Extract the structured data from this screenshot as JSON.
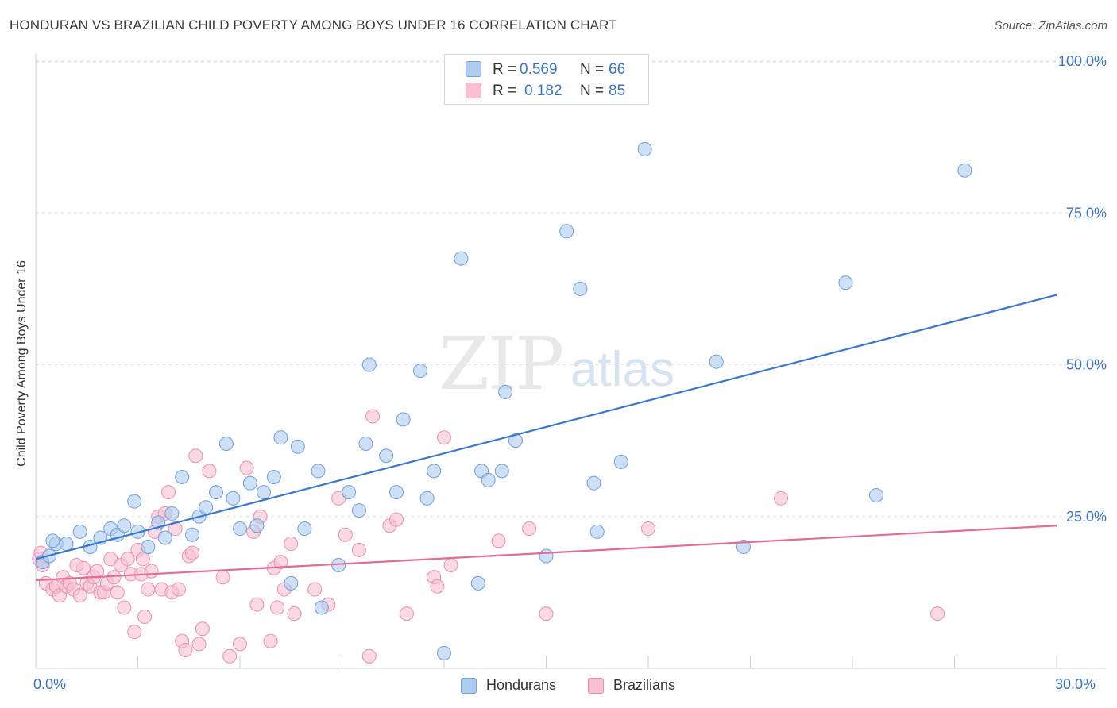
{
  "title": "HONDURAN VS BRAZILIAN CHILD POVERTY AMONG BOYS UNDER 16 CORRELATION CHART",
  "source": "Source: ZipAtlas.com",
  "watermark": {
    "zip": "ZIP",
    "atlas": "atlas"
  },
  "legend_top": [
    {
      "r_label": "R =",
      "r_value": "0.569",
      "n_label": "N =",
      "n_value": "66"
    },
    {
      "r_label": "R =",
      "r_value": "0.182",
      "n_label": "N =",
      "n_value": "85"
    }
  ],
  "legend_bottom": [
    {
      "label": "Hondurans"
    },
    {
      "label": "Brazilians"
    }
  ],
  "colors": {
    "hondurans_fill": "#aecbf0",
    "hondurans_stroke": "#6f9fdc",
    "hondurans_line": "#3a78d0",
    "brazilians_fill": "#f7bfd1",
    "brazilians_stroke": "#ea8fae",
    "brazilians_line": "#e26b97",
    "tick_text": "#3b74c6",
    "grid": "#e2e2e2"
  },
  "chart_data": {
    "type": "scatter",
    "title": "HONDURAN VS BRAZILIAN CHILD POVERTY AMONG BOYS UNDER 16 CORRELATION CHART",
    "xlabel": "",
    "ylabel": "Child Poverty Among Boys Under 16",
    "xlim": [
      0,
      30
    ],
    "ylim": [
      0,
      105
    ],
    "x_ticks": [
      {
        "v": 0,
        "label": "0.0%"
      },
      {
        "v": 30,
        "label": "30.0%"
      }
    ],
    "y_ticks": [
      {
        "v": 25,
        "label": "25.0%"
      },
      {
        "v": 50,
        "label": "50.0%"
      },
      {
        "v": 75,
        "label": "75.0%"
      },
      {
        "v": 100,
        "label": "100.0%"
      }
    ],
    "grid": true,
    "series": [
      {
        "name": "Hondurans",
        "trend": {
          "x": [
            0,
            30
          ],
          "y": [
            18.0,
            61.5
          ]
        },
        "points": [
          [
            0.2,
            17.5
          ],
          [
            0.4,
            18.5
          ],
          [
            0.6,
            20.5
          ],
          [
            0.9,
            20.5
          ],
          [
            1.3,
            22.5
          ],
          [
            1.6,
            20
          ],
          [
            1.9,
            21.5
          ],
          [
            2.2,
            23
          ],
          [
            2.4,
            22
          ],
          [
            2.6,
            23.5
          ],
          [
            2.9,
            27.5
          ],
          [
            3.0,
            22.5
          ],
          [
            3.3,
            20
          ],
          [
            3.6,
            24
          ],
          [
            3.8,
            21.5
          ],
          [
            4.0,
            25.5
          ],
          [
            4.3,
            31.5
          ],
          [
            4.6,
            22
          ],
          [
            4.8,
            25
          ],
          [
            5.0,
            26.5
          ],
          [
            5.3,
            29
          ],
          [
            5.6,
            37
          ],
          [
            5.8,
            28
          ],
          [
            6.0,
            23
          ],
          [
            6.3,
            30.5
          ],
          [
            6.5,
            23.5
          ],
          [
            6.7,
            29
          ],
          [
            7.0,
            31.5
          ],
          [
            7.2,
            38
          ],
          [
            7.5,
            14
          ],
          [
            7.7,
            36.5
          ],
          [
            7.9,
            23
          ],
          [
            8.3,
            32.5
          ],
          [
            8.4,
            10
          ],
          [
            8.9,
            17
          ],
          [
            9.2,
            29
          ],
          [
            9.5,
            26
          ],
          [
            9.7,
            37
          ],
          [
            9.8,
            50
          ],
          [
            10.3,
            35
          ],
          [
            10.6,
            29
          ],
          [
            10.8,
            41
          ],
          [
            11.3,
            49
          ],
          [
            11.5,
            28
          ],
          [
            11.7,
            32.5
          ],
          [
            12.0,
            2.5
          ],
          [
            12.5,
            67.5
          ],
          [
            13.0,
            14
          ],
          [
            13.1,
            32.5
          ],
          [
            13.3,
            31
          ],
          [
            13.7,
            32.5
          ],
          [
            13.8,
            45.5
          ],
          [
            14.1,
            37.5
          ],
          [
            15.0,
            18.5
          ],
          [
            15.6,
            72
          ],
          [
            16.0,
            62.5
          ],
          [
            16.4,
            30.5
          ],
          [
            16.5,
            22.5
          ],
          [
            17.2,
            34
          ],
          [
            17.9,
            85.5
          ],
          [
            20.0,
            50.5
          ],
          [
            20.8,
            20
          ],
          [
            23.8,
            63.5
          ],
          [
            24.7,
            28.5
          ],
          [
            27.3,
            82
          ],
          [
            0.5,
            21
          ]
        ]
      },
      {
        "name": "Brazilians",
        "trend": {
          "x": [
            0,
            30
          ],
          "y": [
            14.5,
            23.5
          ]
        },
        "points": [
          [
            0.1,
            18
          ],
          [
            0.2,
            17
          ],
          [
            0.3,
            14
          ],
          [
            0.5,
            13
          ],
          [
            0.6,
            13.5
          ],
          [
            0.7,
            12
          ],
          [
            0.8,
            15
          ],
          [
            0.9,
            13.5
          ],
          [
            1.0,
            14
          ],
          [
            1.1,
            13
          ],
          [
            1.3,
            12
          ],
          [
            1.4,
            16.5
          ],
          [
            1.5,
            14
          ],
          [
            1.6,
            13.5
          ],
          [
            1.7,
            15
          ],
          [
            1.8,
            16
          ],
          [
            1.9,
            12.5
          ],
          [
            2.0,
            12.5
          ],
          [
            2.1,
            14
          ],
          [
            2.2,
            18
          ],
          [
            2.3,
            15
          ],
          [
            2.4,
            12.5
          ],
          [
            2.5,
            17
          ],
          [
            2.6,
            10
          ],
          [
            2.7,
            18
          ],
          [
            2.8,
            15.5
          ],
          [
            2.9,
            6
          ],
          [
            3.0,
            19.5
          ],
          [
            3.1,
            15.5
          ],
          [
            3.2,
            8.5
          ],
          [
            3.3,
            13
          ],
          [
            3.4,
            16
          ],
          [
            3.5,
            22.5
          ],
          [
            3.6,
            25
          ],
          [
            3.7,
            13
          ],
          [
            3.8,
            25.5
          ],
          [
            3.9,
            29
          ],
          [
            4.0,
            12.5
          ],
          [
            4.1,
            23
          ],
          [
            4.2,
            13
          ],
          [
            4.3,
            4.5
          ],
          [
            4.4,
            3
          ],
          [
            4.5,
            18.5
          ],
          [
            4.6,
            19
          ],
          [
            4.7,
            35
          ],
          [
            4.8,
            4
          ],
          [
            4.9,
            6.5
          ],
          [
            5.1,
            32.5
          ],
          [
            5.5,
            15
          ],
          [
            5.7,
            2
          ],
          [
            6.0,
            4
          ],
          [
            6.2,
            33
          ],
          [
            6.4,
            22.5
          ],
          [
            6.5,
            10.5
          ],
          [
            6.6,
            25
          ],
          [
            6.9,
            4.5
          ],
          [
            7.0,
            16.5
          ],
          [
            7.1,
            10
          ],
          [
            7.2,
            17.5
          ],
          [
            7.3,
            13
          ],
          [
            7.5,
            20.5
          ],
          [
            7.6,
            9
          ],
          [
            8.2,
            13
          ],
          [
            8.6,
            10.5
          ],
          [
            8.9,
            28
          ],
          [
            9.1,
            22
          ],
          [
            9.5,
            19.5
          ],
          [
            9.8,
            2
          ],
          [
            9.9,
            41.5
          ],
          [
            10.4,
            23.5
          ],
          [
            10.6,
            24.5
          ],
          [
            10.9,
            9
          ],
          [
            11.7,
            15
          ],
          [
            11.8,
            13.5
          ],
          [
            12.0,
            38
          ],
          [
            12.2,
            17
          ],
          [
            13.6,
            21
          ],
          [
            14.5,
            23
          ],
          [
            15.0,
            9
          ],
          [
            18.0,
            23
          ],
          [
            21.9,
            28
          ],
          [
            26.5,
            9
          ],
          [
            0.15,
            19
          ],
          [
            1.2,
            17
          ],
          [
            3.15,
            18
          ]
        ]
      }
    ]
  }
}
